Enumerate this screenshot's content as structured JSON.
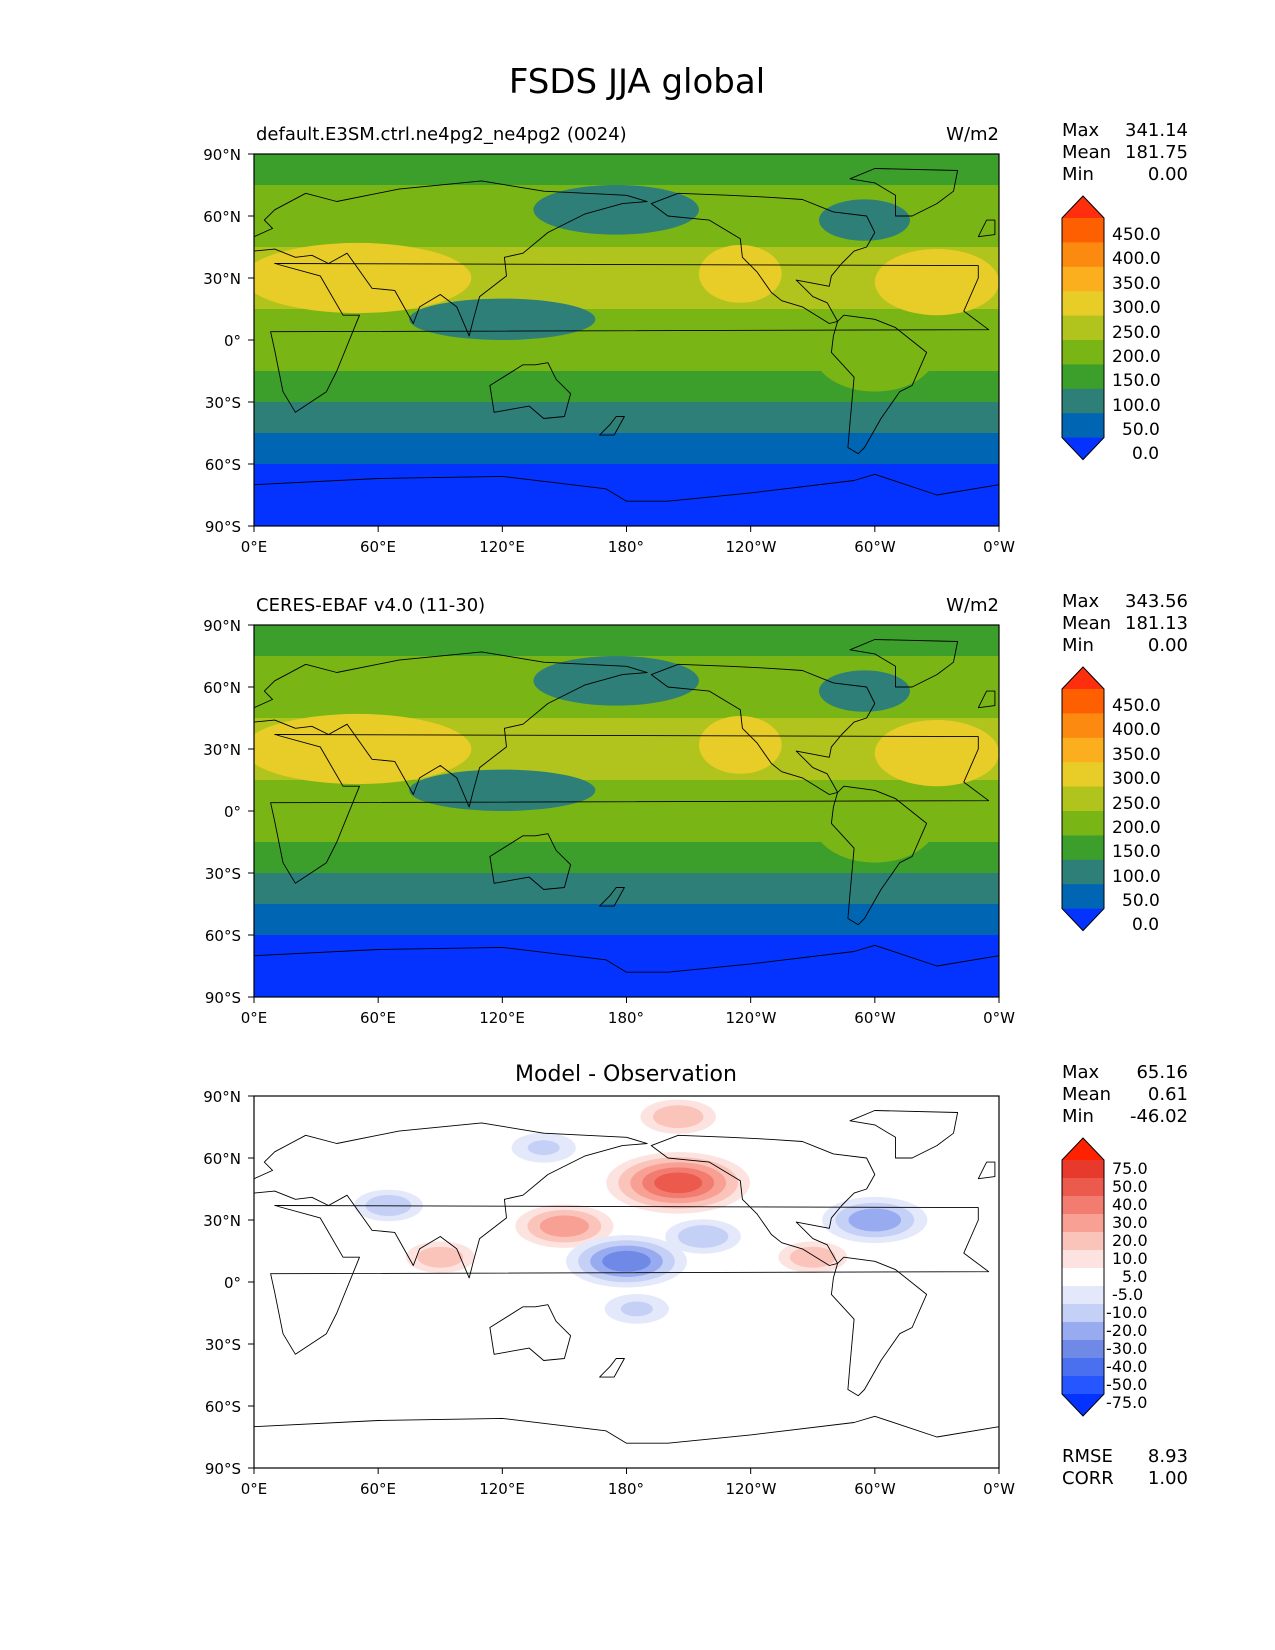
{
  "title": "FSDS JJA global",
  "colors": {
    "field_levels": [
      "#0433ff",
      "#0066b3",
      "#2e7f77",
      "#3c9f2b",
      "#7ab516",
      "#b1c41d",
      "#e8cc27",
      "#fbaf1f",
      "#fd8a10",
      "#fe5f00",
      "#ff2f0d"
    ],
    "diff_levels": [
      "#0433ff",
      "#2656ff",
      "#4a70f0",
      "#6f8ae6",
      "#98aaf0",
      "#c5d0f6",
      "#e4e8fb",
      "#ffffff",
      "#fde3df",
      "#fbc4bb",
      "#f9a095",
      "#f37c70",
      "#ec5a4e",
      "#e83a2c",
      "#ff2200"
    ]
  },
  "panels": [
    {
      "left_title": "default.E3SM.ctrl.ne4pg2_ne4pg2 (0024)",
      "right_title": "W/m2",
      "stats": {
        "max_label": "Max",
        "max": "341.14",
        "mean_label": "Mean",
        "mean": "181.75",
        "min_label": "Min",
        "min": "0.00"
      }
    },
    {
      "left_title": "CERES-EBAF v4.0 (11-30)",
      "right_title": "W/m2",
      "stats": {
        "max_label": "Max",
        "max": "343.56",
        "mean_label": "Mean",
        "mean": "181.13",
        "min_label": "Min",
        "min": "0.00"
      }
    },
    {
      "center_title": "Model - Observation",
      "stats": {
        "max_label": "Max",
        "max": "65.16",
        "mean_label": "Mean",
        "mean": "0.61",
        "min_label": "Min",
        "min": "-46.02"
      },
      "rmse_label": "RMSE",
      "rmse": "8.93",
      "corr_label": "CORR",
      "corr": "1.00"
    }
  ],
  "chart_data": [
    {
      "type": "heatmap",
      "title": "default.E3SM.ctrl.ne4pg2_ne4pg2 (0024)",
      "units": "W/m2",
      "xticks": [
        "0°E",
        "60°E",
        "120°E",
        "180°",
        "120°W",
        "60°W",
        "0°W"
      ],
      "yticks": [
        "90°N",
        "60°N",
        "30°N",
        "0°",
        "30°S",
        "60°S",
        "90°S"
      ],
      "xlim": [
        0,
        360
      ],
      "ylim": [
        -90,
        90
      ],
      "colorbar_levels": [
        "450.0",
        "400.0",
        "350.0",
        "300.0",
        "250.0",
        "200.0",
        "150.0",
        "100.0",
        "50.0",
        "0.0"
      ],
      "zonal_profile": {
        "lat": [
          90,
          75,
          60,
          45,
          30,
          15,
          0,
          -15,
          -30,
          -45,
          -60,
          -75,
          -90
        ],
        "value": [
          190,
          205,
          215,
          260,
          290,
          255,
          240,
          200,
          150,
          90,
          25,
          5,
          0
        ]
      }
    },
    {
      "type": "heatmap",
      "title": "CERES-EBAF v4.0 (11-30)",
      "units": "W/m2",
      "xticks": [
        "0°E",
        "60°E",
        "120°E",
        "180°",
        "120°W",
        "60°W",
        "0°W"
      ],
      "yticks": [
        "90°N",
        "60°N",
        "30°N",
        "0°",
        "30°S",
        "60°S",
        "90°S"
      ],
      "xlim": [
        0,
        360
      ],
      "ylim": [
        -90,
        90
      ],
      "colorbar_levels": [
        "450.0",
        "400.0",
        "350.0",
        "300.0",
        "250.0",
        "200.0",
        "150.0",
        "100.0",
        "50.0",
        "0.0"
      ],
      "zonal_profile": {
        "lat": [
          90,
          75,
          60,
          45,
          30,
          15,
          0,
          -15,
          -30,
          -45,
          -60,
          -75,
          -90
        ],
        "value": [
          190,
          205,
          212,
          262,
          292,
          250,
          238,
          198,
          148,
          88,
          24,
          5,
          0
        ]
      }
    },
    {
      "type": "heatmap",
      "title": "Model - Observation",
      "xticks": [
        "0°E",
        "60°E",
        "120°E",
        "180°",
        "120°W",
        "60°W",
        "0°W"
      ],
      "yticks": [
        "90°N",
        "60°N",
        "30°N",
        "0°",
        "30°S",
        "60°S",
        "90°S"
      ],
      "xlim": [
        0,
        360
      ],
      "ylim": [
        -90,
        90
      ],
      "colorbar_levels": [
        "75.0",
        "50.0",
        "40.0",
        "30.0",
        "20.0",
        "10.0",
        "5.0",
        "-5.0",
        "-10.0",
        "-20.0",
        "-30.0",
        "-40.0",
        "-50.0",
        "-75.0"
      ],
      "anomalies": [
        {
          "lon": 205,
          "lat": 48,
          "value": 45
        },
        {
          "lon": 150,
          "lat": 27,
          "value": 25
        },
        {
          "lon": 205,
          "lat": 80,
          "value": 15
        },
        {
          "lon": 90,
          "lat": 12,
          "value": 12
        },
        {
          "lon": 270,
          "lat": 12,
          "value": 12
        },
        {
          "lon": 180,
          "lat": 10,
          "value": -35
        },
        {
          "lon": 217,
          "lat": 22,
          "value": -15
        },
        {
          "lon": 300,
          "lat": 30,
          "value": -28
        },
        {
          "lon": 65,
          "lat": 37,
          "value": -12
        },
        {
          "lon": 140,
          "lat": 65,
          "value": -10
        },
        {
          "lon": 185,
          "lat": -13,
          "value": -10
        }
      ]
    }
  ]
}
